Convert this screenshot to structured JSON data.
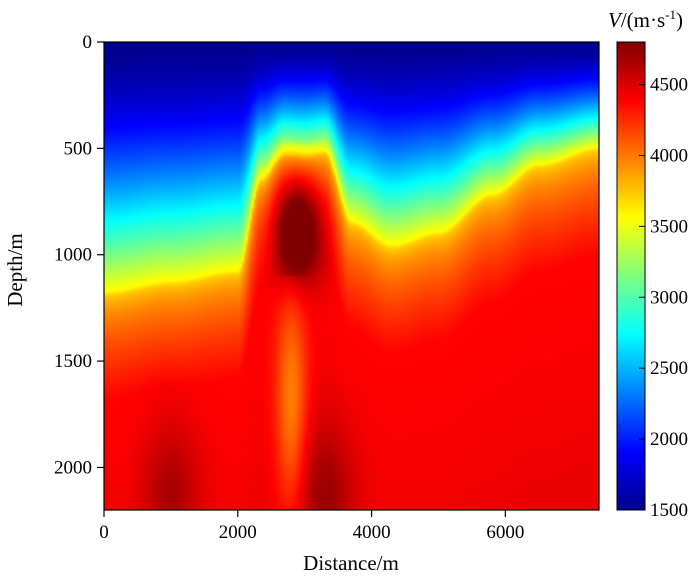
{
  "chart_data": {
    "type": "heatmap",
    "xlabel": "Distance/m",
    "ylabel": "Depth/m",
    "xlim": [
      0,
      7400
    ],
    "ylim": [
      0,
      2200
    ],
    "x_ticks": [
      0,
      2000,
      4000,
      6000
    ],
    "y_ticks": [
      0,
      500,
      1000,
      1500,
      2000
    ],
    "y_inverted": true,
    "colorbar": {
      "title_italic": "V",
      "title_rest": "/(m·s",
      "title_sup": "-1",
      "title_close": ")",
      "range": [
        1500,
        4800
      ],
      "ticks": [
        1500,
        2000,
        2500,
        3000,
        3500,
        4000,
        4500
      ],
      "colormap": "jet"
    },
    "interface_depth_profile": {
      "x": [
        0,
        1000,
        2000,
        2350,
        2700,
        3000,
        3300,
        3700,
        4300,
        5000,
        5800,
        6500,
        7400
      ],
      "depth": [
        1180,
        1130,
        1080,
        650,
        530,
        540,
        520,
        850,
        960,
        900,
        720,
        580,
        500
      ]
    },
    "velocity_features": [
      {
        "label": "high-velocity body",
        "x": 2900,
        "depth": 850,
        "velocity": 4700
      },
      {
        "label": "high-velocity zone",
        "x": 1000,
        "depth": 2150,
        "velocity": 4700
      },
      {
        "label": "high-velocity zone",
        "x": 3300,
        "depth": 2150,
        "velocity": 4750
      },
      {
        "label": "low-velocity channel",
        "x": 2800,
        "depth": 1700,
        "velocity": 4000
      }
    ]
  }
}
